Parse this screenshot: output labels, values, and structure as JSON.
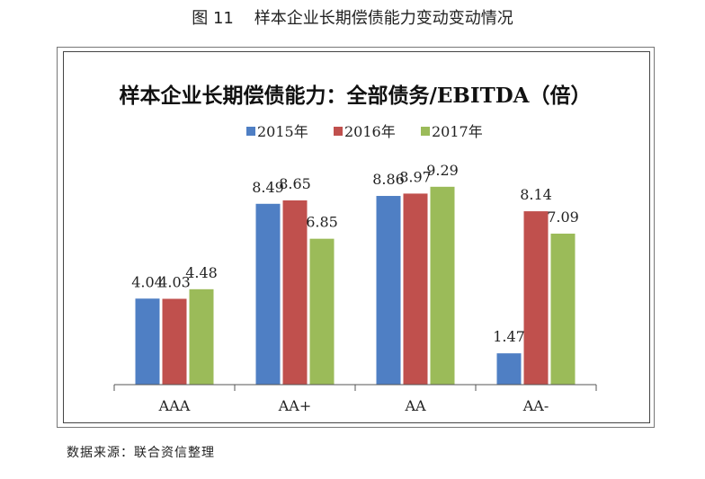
{
  "caption": "图 11    样本企业长期偿债能力变动变动情况",
  "source": "数据来源：联合资信整理",
  "colors": {
    "series": [
      "#4f7fc4",
      "#c0504d",
      "#9bbb59"
    ]
  },
  "chart_data": {
    "type": "bar",
    "title": "样本企业长期偿债能力：全部债务/EBITDA（倍）",
    "categories": [
      "AAA",
      "AA+",
      "AA",
      "AA-"
    ],
    "series": [
      {
        "name": "2015年",
        "values": [
          4.04,
          8.49,
          8.86,
          1.47
        ]
      },
      {
        "name": "2016年",
        "values": [
          4.03,
          8.65,
          8.97,
          8.14
        ]
      },
      {
        "name": "2017年",
        "values": [
          4.48,
          6.85,
          9.29,
          7.09
        ]
      }
    ],
    "data_labels": [
      [
        "4.04",
        "8.49",
        "8.86",
        "1.47"
      ],
      [
        "4.03",
        "8.65",
        "8.97",
        "8.14"
      ],
      [
        "4.48",
        "6.85",
        "9.29",
        "7.09"
      ]
    ],
    "ylim": [
      0,
      10.5
    ],
    "legend_position": "top",
    "grid": false,
    "xlabel": "",
    "ylabel": ""
  }
}
